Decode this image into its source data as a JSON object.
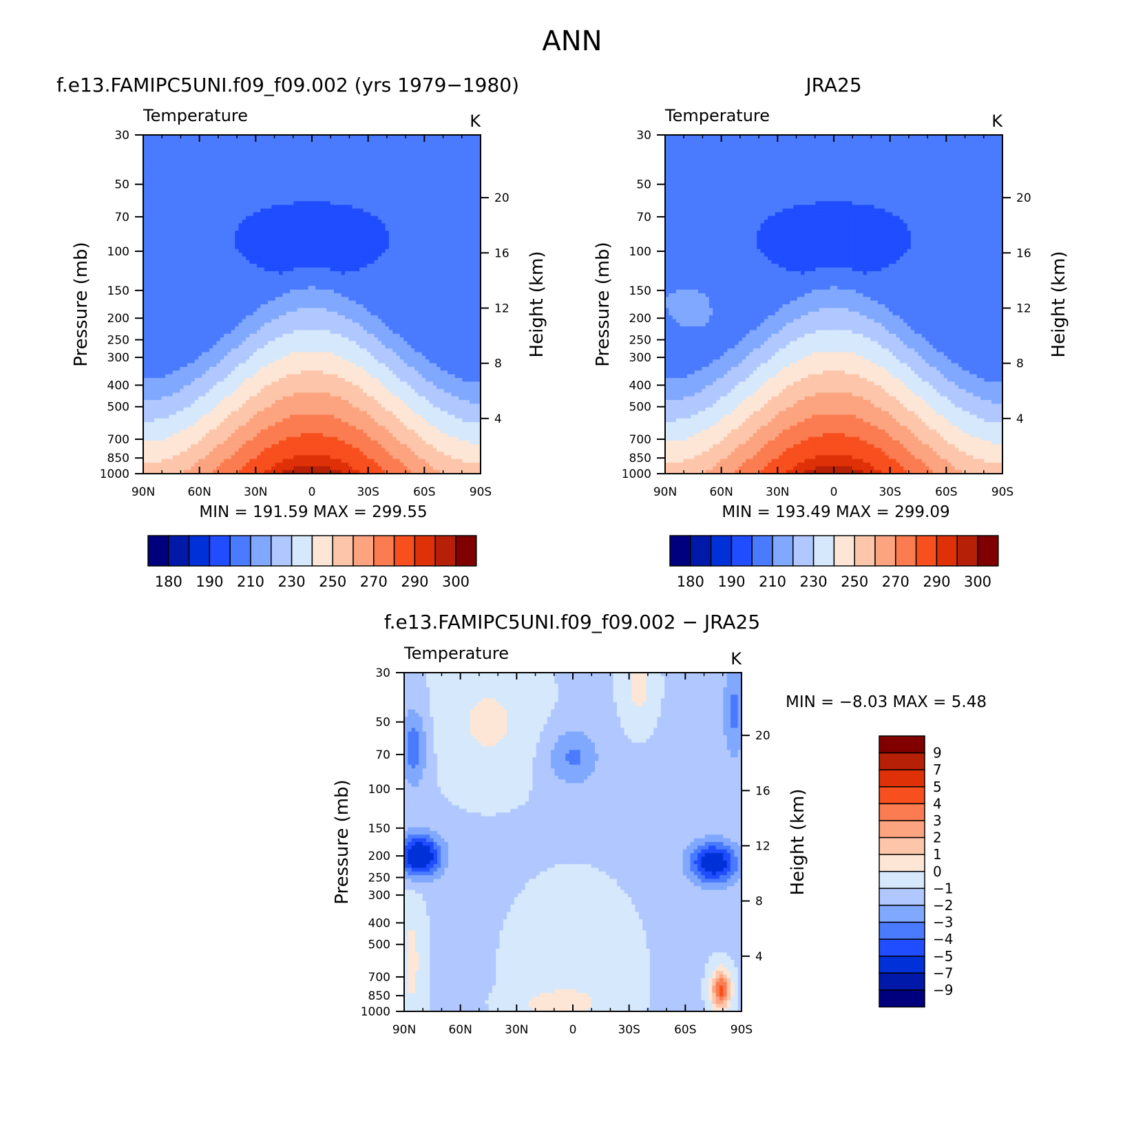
{
  "figure_title": "ANN",
  "chart_data": [
    {
      "type": "heatmap",
      "id": "model",
      "title": "f.e13.FAMIPC5UNI.f09_f09.002 (yrs 1979−1980)",
      "variable": "Temperature",
      "units": "K",
      "xlabel": "",
      "ylabel": "Pressure (mb)",
      "ylabel_right": "Height (km)",
      "x_ticks": [
        "90N",
        "60N",
        "30N",
        "0",
        "30S",
        "60S",
        "90S"
      ],
      "y_ticks": [
        "30",
        "50",
        "70",
        "100",
        "150",
        "200",
        "250",
        "300",
        "400",
        "500",
        "700",
        "850",
        "1000"
      ],
      "height_ticks": [
        "20",
        "16",
        "12",
        "8",
        "4"
      ],
      "stats_text": "MIN =  191.59   MAX =  299.55",
      "min": 191.59,
      "max": 299.55,
      "contour_levels": [
        180,
        185,
        190,
        200,
        210,
        220,
        230,
        240,
        250,
        260,
        270,
        280,
        290,
        295,
        300
      ],
      "colorbar_labels": [
        "180",
        "190",
        "210",
        "230",
        "250",
        "270",
        "290",
        "300"
      ]
    },
    {
      "type": "heatmap",
      "id": "obs",
      "title": "JRA25",
      "variable": "Temperature",
      "units": "K",
      "xlabel": "",
      "ylabel": "Pressure (mb)",
      "ylabel_right": "Height (km)",
      "x_ticks": [
        "90N",
        "60N",
        "30N",
        "0",
        "30S",
        "60S",
        "90S"
      ],
      "y_ticks": [
        "30",
        "50",
        "70",
        "100",
        "150",
        "200",
        "250",
        "300",
        "400",
        "500",
        "700",
        "850",
        "1000"
      ],
      "height_ticks": [
        "20",
        "16",
        "12",
        "8",
        "4"
      ],
      "stats_text": "MIN =  193.49   MAX =  299.09",
      "min": 193.49,
      "max": 299.09,
      "contour_levels": [
        180,
        185,
        190,
        200,
        210,
        220,
        230,
        240,
        250,
        260,
        270,
        280,
        290,
        295,
        300
      ],
      "colorbar_labels": [
        "180",
        "190",
        "210",
        "230",
        "250",
        "270",
        "290",
        "300"
      ]
    },
    {
      "type": "heatmap",
      "id": "diff",
      "title": "f.e13.FAMIPC5UNI.f09_f09.002 − JRA25",
      "variable": "Temperature",
      "units": "K",
      "xlabel": "",
      "ylabel": "Pressure (mb)",
      "ylabel_right": "Height (km)",
      "x_ticks": [
        "90N",
        "60N",
        "30N",
        "0",
        "30S",
        "60S",
        "90S"
      ],
      "y_ticks": [
        "30",
        "50",
        "70",
        "100",
        "150",
        "200",
        "250",
        "300",
        "400",
        "500",
        "700",
        "850",
        "1000"
      ],
      "height_ticks": [
        "20",
        "16",
        "12",
        "8",
        "4"
      ],
      "stats_text": "MIN =   −8.03   MAX =    5.48",
      "min": -8.03,
      "max": 5.48,
      "contour_levels": [
        -9,
        -7,
        -5,
        -4,
        -3,
        -2,
        -1,
        0,
        1,
        2,
        3,
        4,
        5,
        7,
        9
      ],
      "colorbar_labels": [
        "9",
        "7",
        "5",
        "4",
        "3",
        "2",
        "1",
        "0",
        "−1",
        "−2",
        "−3",
        "−4",
        "−5",
        "−7",
        "−9"
      ]
    }
  ],
  "colorbar_colors": [
    "#00007f",
    "#0019a8",
    "#0030d8",
    "#1f4dff",
    "#4a7bff",
    "#80a8ff",
    "#b0c8ff",
    "#d6e8fb",
    "#fde6d6",
    "#fdc6aa",
    "#fca37f",
    "#fb7c50",
    "#f84f1f",
    "#df3108",
    "#b52006",
    "#800000"
  ]
}
